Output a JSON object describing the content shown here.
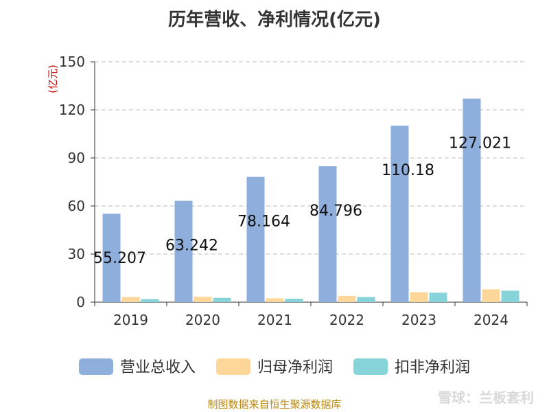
{
  "title": "历年营收、净利情况(亿元)",
  "source": "制图数据来自恒生聚源数据库",
  "watermark": "雪球：兰板套利",
  "chart_data": {
    "type": "bar",
    "title": "历年营收、净利情况(亿元)",
    "ylabel": "(亿元)",
    "xlabel": "",
    "ylim": [
      0,
      150
    ],
    "yticks": [
      0,
      30,
      60,
      90,
      120,
      150
    ],
    "grid": true,
    "legend_position": "bottom",
    "categories": [
      "2019",
      "2020",
      "2021",
      "2022",
      "2023",
      "2024"
    ],
    "series": [
      {
        "name": "营业总收入",
        "color": "#8eaedc",
        "values": [
          55.207,
          63.242,
          78.164,
          84.796,
          110.18,
          127.021
        ],
        "labels": [
          "55.207",
          "63.242",
          "78.164",
          "84.796",
          "110.18",
          "127.021"
        ]
      },
      {
        "name": "归母净利润",
        "color": "#fdd699",
        "values": [
          3.2,
          3.4,
          2.4,
          3.9,
          6.2,
          8.0
        ]
      },
      {
        "name": "扣非净利润",
        "color": "#86d3d9",
        "values": [
          1.9,
          2.7,
          2.1,
          3.2,
          5.9,
          7.1
        ]
      }
    ]
  }
}
